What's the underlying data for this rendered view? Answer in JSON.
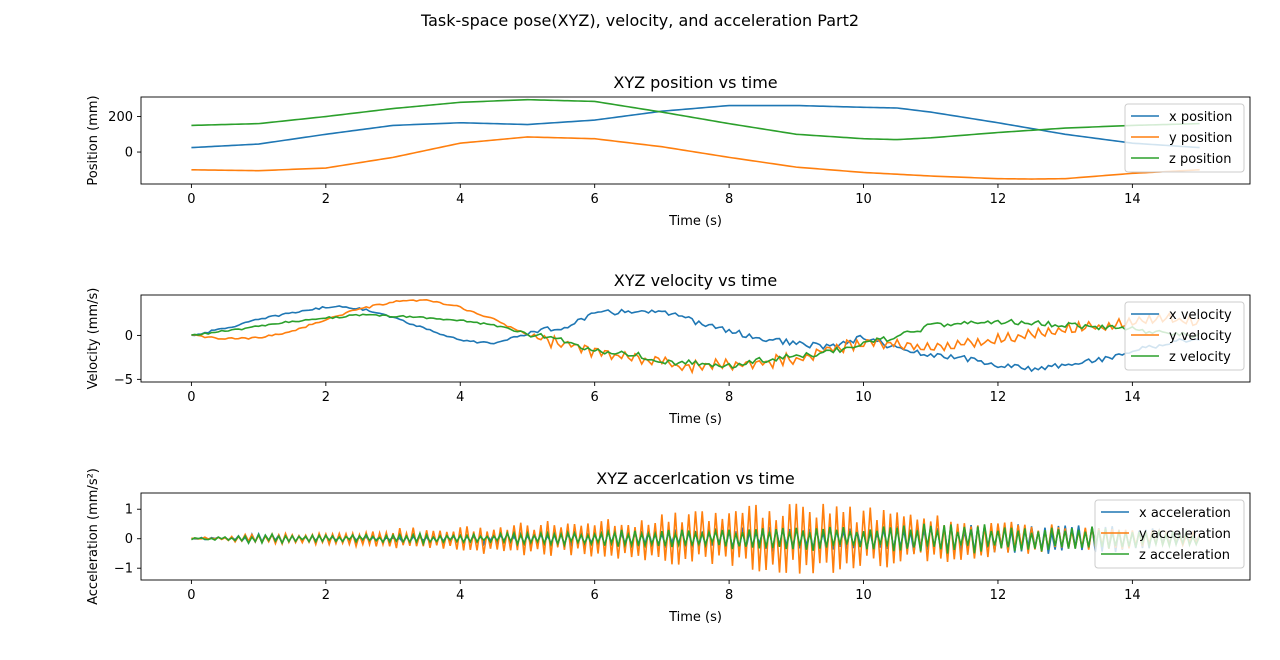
{
  "suptitle": "Task-space pose(XYZ), velocity, and acceleration Part2",
  "chart_data": [
    {
      "type": "line",
      "title": "XYZ position vs time",
      "xlabel": "Time (s)",
      "ylabel": "Position (mm)",
      "xlim": [
        -0.75,
        15.75
      ],
      "ylim": [
        -180,
        310
      ],
      "xticks": [
        0,
        2,
        4,
        6,
        8,
        10,
        12,
        14
      ],
      "yticks": [
        0,
        200
      ],
      "legend_loc": "upper right",
      "series": [
        {
          "name": "x position",
          "color": "#1f77b4",
          "x": [
            0,
            1,
            2,
            3,
            4,
            5,
            6,
            7,
            8,
            9,
            10,
            10.5,
            11,
            12,
            13,
            14,
            15
          ],
          "y": [
            25,
            45,
            100,
            150,
            165,
            155,
            180,
            230,
            262,
            262,
            252,
            248,
            225,
            165,
            100,
            50,
            25
          ]
        },
        {
          "name": "y position",
          "color": "#ff7f0e",
          "x": [
            0,
            1,
            2,
            3,
            4,
            5,
            6,
            7,
            8,
            9,
            10,
            11,
            12,
            12.5,
            13,
            14,
            15
          ],
          "y": [
            -100,
            -105,
            -90,
            -30,
            50,
            85,
            75,
            30,
            -30,
            -85,
            -115,
            -135,
            -150,
            -152,
            -150,
            -120,
            -100
          ]
        },
        {
          "name": "z position",
          "color": "#2ca02c",
          "x": [
            0,
            1,
            2,
            3,
            4,
            5,
            6,
            7,
            8,
            9,
            10,
            10.5,
            11,
            12,
            13,
            14,
            15
          ],
          "y": [
            150,
            160,
            200,
            245,
            280,
            295,
            285,
            225,
            160,
            100,
            75,
            70,
            80,
            110,
            135,
            150,
            160
          ]
        }
      ]
    },
    {
      "type": "line",
      "title": "XYZ velocity vs time",
      "xlabel": "Time (s)",
      "ylabel": "Velocity (mm/s)",
      "xlim": [
        -0.75,
        15.75
      ],
      "ylim": [
        -5.3,
        4.6
      ],
      "xticks": [
        0,
        2,
        4,
        6,
        8,
        10,
        12,
        14
      ],
      "yticks": [
        -5,
        0
      ],
      "legend_loc": "upper right",
      "series": [
        {
          "name": "x velocity",
          "color": "#1f77b4",
          "x": [
            0,
            0.5,
            1,
            1.5,
            2,
            2.3,
            2.8,
            3.2,
            3.6,
            4,
            4.5,
            5,
            5.5,
            6,
            6.5,
            7,
            7.5,
            8,
            8.5,
            9,
            9.5,
            10,
            10.5,
            11,
            11.5,
            12,
            12.5,
            13,
            13.5,
            14,
            14.5,
            15
          ],
          "y": [
            0,
            0.8,
            1.8,
            2.6,
            3.2,
            3.3,
            2.6,
            1.5,
            0.5,
            -0.6,
            -0.9,
            0.2,
            0.9,
            2.4,
            2.8,
            2.6,
            1.6,
            0.5,
            -0.4,
            -0.9,
            -1.4,
            -0.2,
            -1.5,
            -2.3,
            -2.6,
            -3.4,
            -3.8,
            -3.3,
            -2.8,
            -1.8,
            -0.9,
            -0.3
          ]
        },
        {
          "name": "y velocity",
          "color": "#ff7f0e",
          "x": [
            0,
            0.5,
            1,
            1.5,
            2,
            2.5,
            3,
            3.5,
            4,
            4.5,
            5,
            5.5,
            6,
            6.5,
            7,
            7.5,
            8,
            8.5,
            9,
            9.5,
            10,
            10.5,
            11,
            11.5,
            12,
            12.5,
            13,
            13.5,
            14,
            14.5,
            15
          ],
          "y": [
            0,
            -0.4,
            -0.3,
            0.5,
            1.8,
            3.0,
            3.8,
            4.0,
            3.2,
            1.8,
            0.1,
            -0.9,
            -1.8,
            -2.5,
            -3.1,
            -3.5,
            -3.3,
            -3.1,
            -2.6,
            -1.6,
            -0.8,
            -1.0,
            -1.4,
            -1.0,
            -0.5,
            0.2,
            0.8,
            1.0,
            1.6,
            1.9,
            1.5
          ]
        },
        {
          "name": "z velocity",
          "color": "#2ca02c",
          "x": [
            0,
            0.5,
            1,
            1.5,
            2,
            2.5,
            3,
            3.5,
            4,
            4.5,
            5,
            5.5,
            6,
            6.5,
            7,
            7.5,
            8,
            8.5,
            9,
            9.5,
            10,
            10.5,
            11,
            11.5,
            12,
            12.5,
            13,
            13.5,
            14,
            14.5,
            15
          ],
          "y": [
            0,
            0.5,
            1.0,
            1.6,
            2.0,
            2.3,
            2.2,
            2.0,
            1.7,
            1.2,
            0.2,
            -0.6,
            -1.7,
            -2.0,
            -2.9,
            -3.2,
            -3.5,
            -2.8,
            -2.4,
            -1.9,
            -0.8,
            -0.2,
            1.1,
            1.3,
            1.6,
            1.4,
            1.2,
            0.9,
            0.7,
            0.3,
            0
          ]
        }
      ]
    },
    {
      "type": "line",
      "title": "XYZ accerlcation vs time",
      "xlabel": "Time (s)",
      "ylabel": "Acceleration (mm/s²)",
      "xlim": [
        -0.75,
        15.75
      ],
      "ylim": [
        -1.4,
        1.55
      ],
      "xticks": [
        0,
        2,
        4,
        6,
        8,
        10,
        12,
        14
      ],
      "yticks": [
        -1,
        0,
        1
      ],
      "legend_loc": "upper right",
      "series": [
        {
          "name": "x acceleration",
          "color": "#1f77b4",
          "x": [
            0,
            1,
            2,
            3,
            4,
            5,
            6,
            7,
            8,
            9,
            10,
            11,
            12,
            13,
            14,
            15
          ],
          "y": [
            -0.05,
            0.15,
            0.1,
            0.1,
            0.15,
            0.2,
            0.25,
            0.3,
            0.35,
            0.45,
            0.4,
            0.5,
            0.45,
            0.5,
            0.45,
            0.1
          ]
        },
        {
          "name": "y acceleration",
          "color": "#ff7f0e",
          "x": [
            0,
            1,
            2,
            3,
            4,
            5,
            6,
            7,
            8,
            9,
            10,
            11,
            12,
            13,
            14,
            15
          ],
          "y": [
            0,
            0.15,
            0.2,
            0.35,
            0.45,
            0.55,
            0.65,
            0.9,
            1.05,
            1.3,
            1.1,
            0.9,
            0.6,
            0.45,
            0.35,
            0.2
          ]
        },
        {
          "name": "z acceleration",
          "color": "#2ca02c",
          "x": [
            0,
            1,
            2,
            3,
            4,
            5,
            6,
            7,
            8,
            9,
            10,
            11,
            12,
            13,
            14,
            15
          ],
          "y": [
            -0.05,
            0.15,
            0.1,
            0.15,
            0.15,
            0.2,
            0.25,
            0.3,
            0.35,
            0.4,
            0.4,
            0.5,
            0.45,
            0.4,
            0.35,
            0.2
          ]
        }
      ]
    }
  ]
}
